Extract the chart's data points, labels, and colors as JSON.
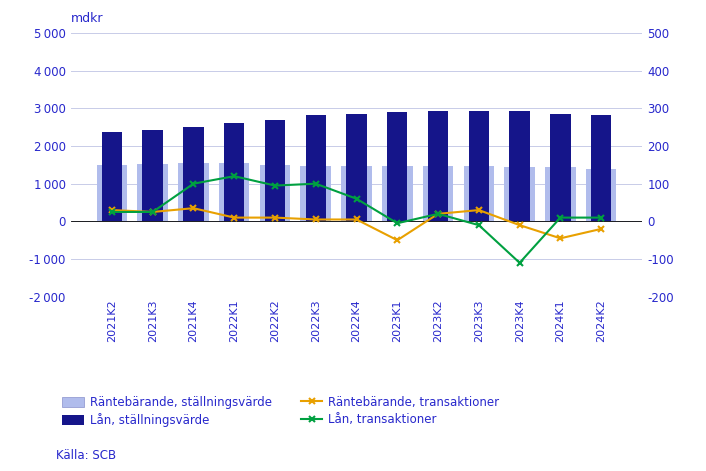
{
  "categories": [
    "2021K2",
    "2021K3",
    "2021K4",
    "2022K1",
    "2022K2",
    "2022K3",
    "2022K4",
    "2023K1",
    "2023K2",
    "2023K3",
    "2023K4",
    "2024K1",
    "2024K2"
  ],
  "lan_stallning": [
    2380,
    2420,
    2500,
    2620,
    2700,
    2820,
    2840,
    2900,
    2920,
    2930,
    2920,
    2850,
    2830
  ],
  "rantebar_stallning": [
    1500,
    1530,
    1540,
    1540,
    1490,
    1480,
    1470,
    1470,
    1470,
    1460,
    1430,
    1430,
    1400
  ],
  "rantebar_trans": [
    30,
    25,
    35,
    10,
    10,
    5,
    5,
    -50,
    20,
    30,
    -10,
    -45,
    -20
  ],
  "lan_trans": [
    25,
    25,
    100,
    120,
    95,
    100,
    60,
    -5,
    20,
    -10,
    -110,
    10,
    10
  ],
  "left_ylim": [
    -2000,
    5000
  ],
  "right_ylim": [
    -200,
    500
  ],
  "left_yticks": [
    -2000,
    -1000,
    0,
    1000,
    2000,
    3000,
    4000,
    5000
  ],
  "right_yticks": [
    -200,
    -100,
    0,
    100,
    200,
    300,
    400,
    500
  ],
  "ylabel_left": "mdkr",
  "bar_dark_color": "#15158a",
  "bar_light_color": "#b0bcec",
  "line_orange_color": "#e8a000",
  "line_green_color": "#00a040",
  "grid_color": "#c8cce8",
  "text_color": "#2828cc",
  "legend_labels": [
    "Räntebärande, ställningsvärde",
    "Lån, ställningsvärde",
    "Räntebärande, transaktioner",
    "Lån, transaktioner"
  ],
  "source_text": "Källa: SCB"
}
